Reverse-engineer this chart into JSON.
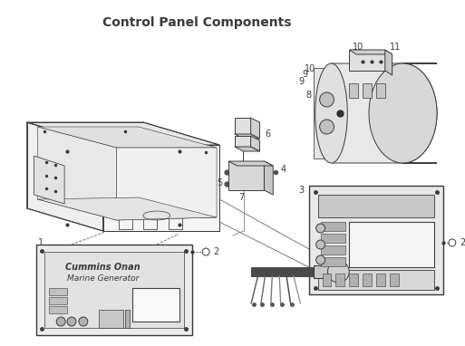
{
  "title": "Control Panel Components",
  "title_fontsize": 10,
  "title_fontweight": "bold",
  "bg_color": "#ffffff",
  "line_color": "#3a3a3a",
  "lw": 0.7
}
